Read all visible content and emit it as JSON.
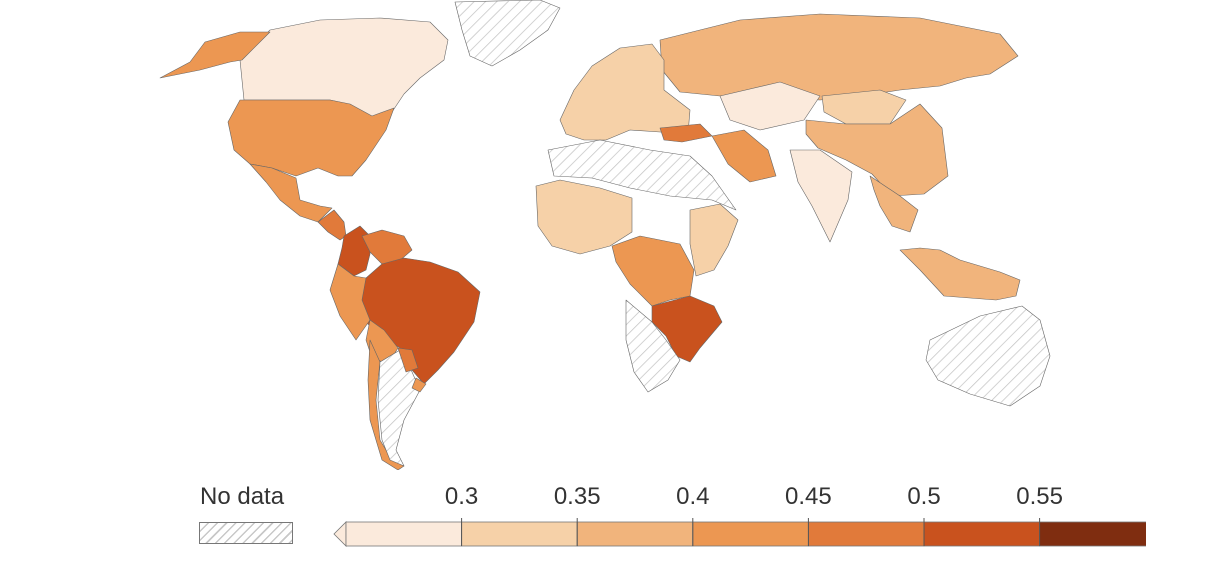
{
  "legend": {
    "no_data_label": "No data",
    "ticks": [
      "0.3",
      "0.35",
      "0.4",
      "0.45",
      "0.5",
      "0.55"
    ],
    "bins": [
      {
        "range": "< 0.3",
        "color": "#fbeadc"
      },
      {
        "range": "0.3–0.35",
        "color": "#f6d1a8"
      },
      {
        "range": "0.35–0.4",
        "color": "#f1b47c"
      },
      {
        "range": "0.4–0.45",
        "color": "#ec9752"
      },
      {
        "range": "0.45–0.5",
        "color": "#e17a3a"
      },
      {
        "range": "0.5–0.55",
        "color": "#c9521e"
      },
      {
        "range": "> 0.55",
        "color": "#7f2d10"
      }
    ],
    "no_data_color": "#cccccc"
  },
  "regions": [
    {
      "name": "Canada",
      "bin": 0
    },
    {
      "name": "Greenland",
      "bin": -1
    },
    {
      "name": "Alaska",
      "bin": 3
    },
    {
      "name": "United States",
      "bin": 3
    },
    {
      "name": "Mexico",
      "bin": 3
    },
    {
      "name": "Central America",
      "bin": 4
    },
    {
      "name": "Colombia",
      "bin": 5
    },
    {
      "name": "Venezuela",
      "bin": 4
    },
    {
      "name": "Brazil",
      "bin": 5
    },
    {
      "name": "Peru",
      "bin": 3
    },
    {
      "name": "Bolivia",
      "bin": 3
    },
    {
      "name": "Chile",
      "bin": 3
    },
    {
      "name": "Argentina",
      "bin": -1
    },
    {
      "name": "Paraguay",
      "bin": 4
    },
    {
      "name": "Uruguay",
      "bin": 3
    },
    {
      "name": "Russia",
      "bin": 2
    },
    {
      "name": "Europe",
      "bin": 1
    },
    {
      "name": "Turkey",
      "bin": 4
    },
    {
      "name": "Iran",
      "bin": 3
    },
    {
      "name": "Kazakhstan",
      "bin": 0
    },
    {
      "name": "Mongolia",
      "bin": 1
    },
    {
      "name": "China",
      "bin": 2
    },
    {
      "name": "India",
      "bin": 0
    },
    {
      "name": "Southeast Asia",
      "bin": 2
    },
    {
      "name": "Indonesia",
      "bin": 2
    },
    {
      "name": "Australia",
      "bin": -1
    },
    {
      "name": "North Africa",
      "bin": -1
    },
    {
      "name": "West Africa",
      "bin": 1
    },
    {
      "name": "Central Africa",
      "bin": 3
    },
    {
      "name": "East Africa",
      "bin": 1
    },
    {
      "name": "Southern Africa",
      "bin": 5
    },
    {
      "name": "South Africa",
      "bin": -1
    }
  ]
}
